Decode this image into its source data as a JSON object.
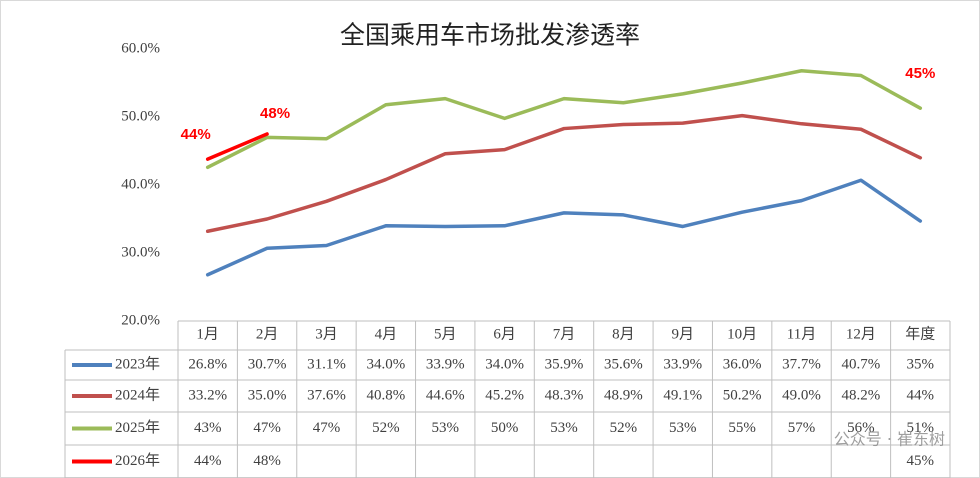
{
  "chart_data": {
    "type": "line",
    "title": "全国乘用车市场批发渗透率",
    "categories": [
      "1月",
      "2月",
      "3月",
      "4月",
      "5月",
      "6月",
      "7月",
      "8月",
      "9月",
      "10月",
      "11月",
      "12月",
      "年度"
    ],
    "ylim": [
      20,
      60
    ],
    "yticks": [
      {
        "value": 20,
        "label": "20.0%"
      },
      {
        "value": 30,
        "label": "30.0%"
      },
      {
        "value": 40,
        "label": "40.0%"
      },
      {
        "value": 50,
        "label": "50.0%"
      },
      {
        "value": 60,
        "label": "60.0%"
      }
    ],
    "series": [
      {
        "name": "2023年",
        "color": "#4f81bd",
        "values": [
          26.8,
          30.7,
          31.1,
          34.0,
          33.9,
          34.0,
          35.9,
          35.6,
          33.9,
          36.0,
          37.7,
          40.7,
          34.7
        ],
        "value_labels": [
          "26.8%",
          "30.7%",
          "31.1%",
          "34.0%",
          "33.9%",
          "34.0%",
          "35.9%",
          "35.6%",
          "33.9%",
          "36.0%",
          "37.7%",
          "40.7%",
          "35%"
        ]
      },
      {
        "name": "2024年",
        "color": "#c0504d",
        "values": [
          33.2,
          35.0,
          37.6,
          40.8,
          44.6,
          45.2,
          48.3,
          48.9,
          49.1,
          50.2,
          49.0,
          48.2,
          44.0
        ],
        "value_labels": [
          "33.2%",
          "35.0%",
          "37.6%",
          "40.8%",
          "44.6%",
          "45.2%",
          "48.3%",
          "48.9%",
          "49.1%",
          "50.2%",
          "49.0%",
          "48.2%",
          "44%"
        ]
      },
      {
        "name": "2025年",
        "color": "#9bbb59",
        "values": [
          42.6,
          47.0,
          46.8,
          51.8,
          52.7,
          49.8,
          52.7,
          52.1,
          53.4,
          55.0,
          56.8,
          56.1,
          51.3
        ],
        "value_labels": [
          "43%",
          "47%",
          "47%",
          "52%",
          "53%",
          "50%",
          "53%",
          "52%",
          "53%",
          "55%",
          "57%",
          "56%",
          "51%"
        ]
      },
      {
        "name": "2026年",
        "color": "#ff0000",
        "values": [
          43.8,
          47.5,
          null,
          null,
          null,
          null,
          null,
          null,
          null,
          null,
          null,
          null,
          45
        ],
        "value_labels": [
          "44%",
          "48%",
          null,
          null,
          null,
          null,
          null,
          null,
          null,
          null,
          null,
          null,
          "45%"
        ]
      }
    ],
    "watermark": "公众号 · 崔东树"
  }
}
